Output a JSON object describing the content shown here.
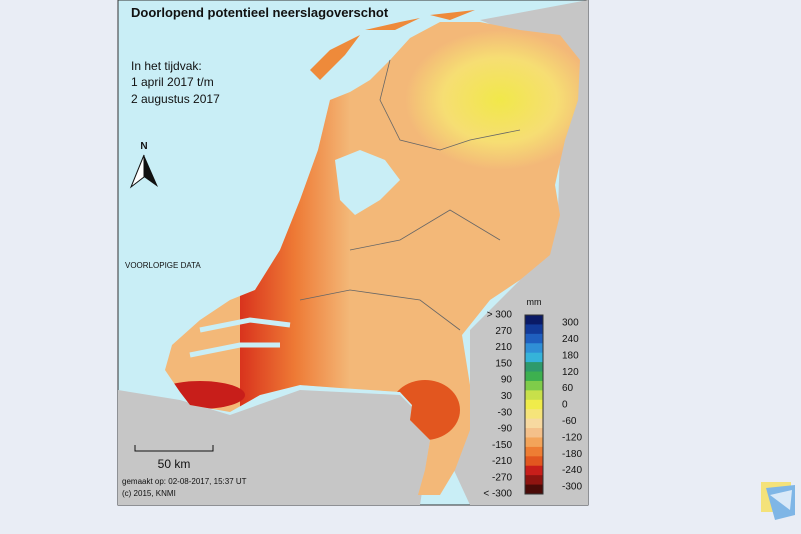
{
  "title": "Doorlopend potentieel neerslagoverschot",
  "period": {
    "label": "In het tijdvak:",
    "start": "1 april 2017 t/m",
    "end": "2 augustus 2017"
  },
  "north_arrow": "N",
  "note": "VOORLOPIGE DATA",
  "scale_bar": "50 km",
  "footer": {
    "made": "gemaakt op: 02-08-2017, 15:37 UT",
    "copyright": "(c) 2015, KNMI"
  },
  "legend": {
    "unit": "mm",
    "left_labels": [
      "> 300",
      "270",
      "210",
      "150",
      "90",
      "30",
      "-30",
      "-90",
      "-150",
      "-210",
      "-270",
      "< -300"
    ],
    "right_labels": [
      "300",
      "240",
      "180",
      "120",
      "60",
      "0",
      "-60",
      "-120",
      "-180",
      "-240",
      "-300"
    ]
  }
}
